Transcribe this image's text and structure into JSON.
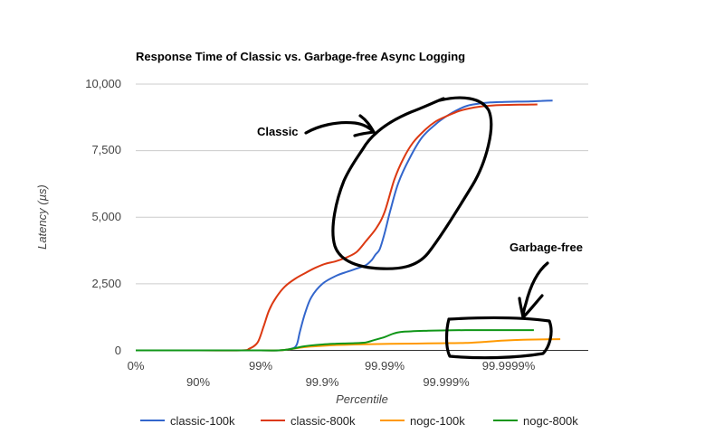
{
  "chart_data": {
    "type": "line",
    "title": "Response Time of Classic vs. Garbage-free Async Logging",
    "xlabel": "Percentile",
    "ylabel": "Latency (µs)",
    "ylim": [
      0,
      10000
    ],
    "y_ticks": [
      "0",
      "2,500",
      "5,000",
      "7,500",
      "10,000"
    ],
    "x_ticks_upper": [
      "0%",
      "99%",
      "99.99%",
      "99.9999%"
    ],
    "x_ticks_lower": [
      "90%",
      "99.9%",
      "99.999%"
    ],
    "x_scale": "percentile, log of (1 - percentile)",
    "grid": true,
    "legend_position": "bottom",
    "annotations": [
      "Classic",
      "Garbage-free"
    ],
    "series": [
      {
        "name": "classic-100k",
        "color": "#3366cc",
        "x": [
          0,
          90,
          99,
          99.5,
          99.68,
          99.74,
          99.77,
          99.81,
          99.85,
          99.9,
          99.94,
          99.96,
          99.97,
          99.98,
          99.984,
          99.986,
          99.988,
          99.99,
          99.992,
          99.994,
          99.996,
          99.9975,
          99.9985,
          99.999,
          99.99935,
          99.99955,
          99.9997,
          99.9998,
          99.99988,
          99.999927,
          99.999955,
          99.99997,
          99.99998
        ],
        "values": [
          0,
          0,
          0,
          0,
          60,
          200,
          700,
          1400,
          2000,
          2500,
          2800,
          2950,
          3050,
          3200,
          3400,
          3600,
          3800,
          4400,
          5300,
          6300,
          7200,
          8000,
          8500,
          8800,
          9050,
          9200,
          9270,
          9310,
          9330,
          9340,
          9350,
          9370,
          9380
        ]
      },
      {
        "name": "classic-800k",
        "color": "#dc3912",
        "x": [
          0,
          90,
          98,
          98.5,
          98.9,
          99.12,
          99.28,
          99.45,
          99.6,
          99.73,
          99.81,
          99.87,
          99.91,
          99.94,
          99.96,
          99.972,
          99.98,
          99.9865,
          99.99,
          99.993,
          99.995,
          99.9965,
          99.9978,
          99.9985,
          99.999,
          99.99935,
          99.99955,
          99.9997,
          99.99982,
          99.9999,
          99.999945,
          99.999965
        ],
        "values": [
          0,
          0,
          0,
          60,
          300,
          900,
          1500,
          2000,
          2400,
          2700,
          2900,
          3100,
          3250,
          3350,
          3500,
          3700,
          4100,
          4600,
          5200,
          6400,
          7200,
          7800,
          8300,
          8600,
          8800,
          8980,
          9080,
          9150,
          9200,
          9220,
          9230,
          9235
        ]
      },
      {
        "name": "nogc-100k",
        "color": "#ff9900",
        "x": [
          0,
          90,
          99,
          99.5,
          99.68,
          99.8,
          99.9,
          99.94,
          99.97,
          99.98,
          99.99,
          99.995,
          99.998,
          99.999,
          99.9995,
          99.99975,
          99.99988,
          99.99994,
          99.99997,
          99.999985
        ],
        "values": [
          0,
          0,
          0,
          0,
          50,
          120,
          170,
          200,
          220,
          230,
          240,
          250,
          260,
          270,
          280,
          320,
          370,
          400,
          410,
          420
        ]
      },
      {
        "name": "nogc-800k",
        "color": "#109618",
        "x": [
          0,
          90,
          99,
          99.5,
          99.68,
          99.8,
          99.9,
          99.94,
          99.97,
          99.98,
          99.985,
          99.99,
          99.993,
          99.995,
          99.998,
          99.999,
          99.9995,
          99.9998,
          99.9999,
          99.99996
        ],
        "values": [
          0,
          0,
          0,
          0,
          50,
          150,
          220,
          250,
          270,
          300,
          380,
          500,
          640,
          700,
          740,
          750,
          760,
          760,
          760,
          760
        ]
      }
    ]
  }
}
